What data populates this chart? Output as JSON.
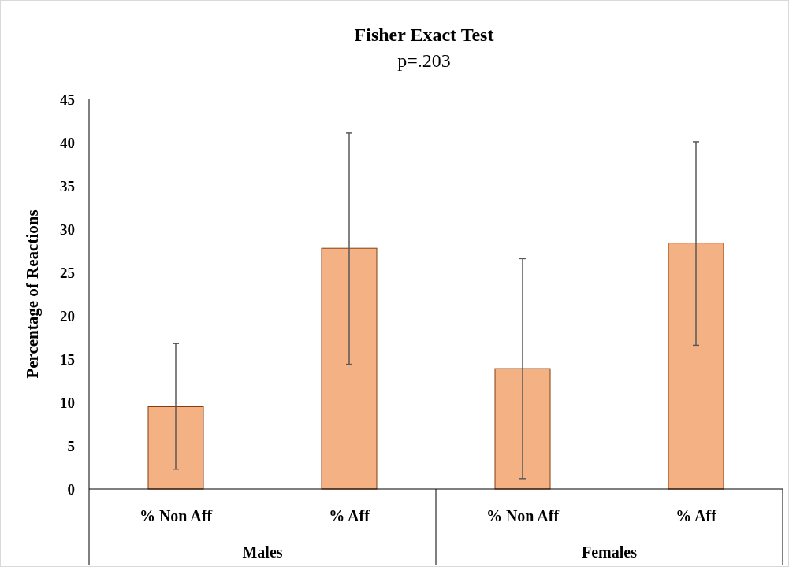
{
  "chart_data": {
    "type": "bar",
    "title": "Fisher Exact Test",
    "subtitle": "p=.203",
    "ylabel": "Percentage of Reactions",
    "categories": [
      "% Non Aff",
      "% Aff",
      "% Non Aff",
      "% Aff"
    ],
    "values": [
      9.5,
      27.8,
      13.9,
      28.4
    ],
    "color": "#f4b183",
    "errors": [
      [
        2.3,
        16.8
      ],
      [
        14.4,
        41.1
      ],
      [
        1.2,
        26.6
      ],
      [
        16.6,
        40.1
      ]
    ],
    "annotations": [
      "Males",
      "Females"
    ],
    "ylim": [
      0,
      45
    ],
    "yticks": [
      0,
      5,
      10,
      15,
      20,
      25,
      30,
      35,
      40,
      45
    ],
    "grid": false
  }
}
